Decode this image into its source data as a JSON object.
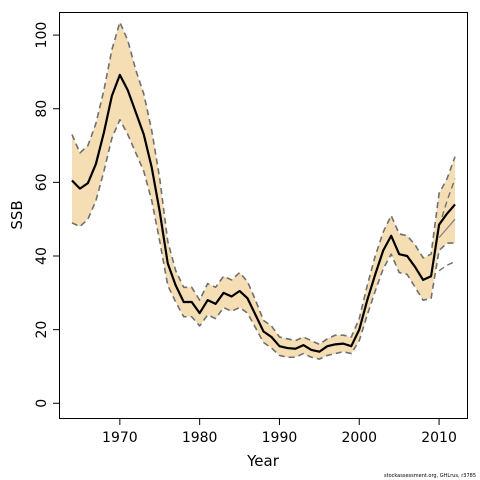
{
  "chart_data": {
    "type": "line",
    "xlabel": "Year",
    "ylabel": "SSB",
    "xlim": [
      1962.5,
      2013.5
    ],
    "ylim": [
      -4,
      106
    ],
    "xticks": [
      1970,
      1980,
      1990,
      2000,
      2010
    ],
    "yticks": [
      0,
      20,
      40,
      60,
      80,
      100
    ],
    "grid": false,
    "footnote": "stockassessment.org, GHLrus, r3785",
    "colors": {
      "band": "#f5deb3",
      "main": "#000000",
      "dashed": "#707070",
      "thin": "#808080"
    },
    "x": [
      1964,
      1965,
      1966,
      1967,
      1968,
      1969,
      1970,
      1971,
      1972,
      1973,
      1974,
      1975,
      1976,
      1977,
      1978,
      1979,
      1980,
      1981,
      1982,
      1983,
      1984,
      1985,
      1986,
      1987,
      1988,
      1989,
      1990,
      1991,
      1992,
      1993,
      1994,
      1995,
      1996,
      1997,
      1998,
      1999,
      2000,
      2001,
      2002,
      2003,
      2004,
      2005,
      2006,
      2007,
      2008,
      2009,
      2010,
      2011,
      2012
    ],
    "series": [
      {
        "role": "estimate",
        "values": [
          60.5,
          58.3,
          59.8,
          65.0,
          73.5,
          83.5,
          89.2,
          85.0,
          79.0,
          73.0,
          64.0,
          52.0,
          38.0,
          32.0,
          27.5,
          27.5,
          24.5,
          28.0,
          27.0,
          30.0,
          29.0,
          30.5,
          28.5,
          24.0,
          19.5,
          18.0,
          15.5,
          15.0,
          14.8,
          15.8,
          14.5,
          14.0,
          15.5,
          16.0,
          16.2,
          15.5,
          20.0,
          28.0,
          35.0,
          41.5,
          45.5,
          40.5,
          40.0,
          37.0,
          33.5,
          34.5,
          48.5,
          51.5,
          54.0
        ]
      },
      {
        "role": "upper-ci",
        "values": [
          73.0,
          68.0,
          70.0,
          76.0,
          85.0,
          96.0,
          103.5,
          98.5,
          90.5,
          84.0,
          74.0,
          61.0,
          44.0,
          36.0,
          31.5,
          31.5,
          28.0,
          32.5,
          31.5,
          34.5,
          33.5,
          35.5,
          33.0,
          28.0,
          22.5,
          21.0,
          18.0,
          17.5,
          17.0,
          18.0,
          17.0,
          16.0,
          17.5,
          18.5,
          18.5,
          18.0,
          23.0,
          32.0,
          40.0,
          46.5,
          51.0,
          46.0,
          45.5,
          43.0,
          39.5,
          40.5,
          57.0,
          61.0,
          67.0
        ]
      },
      {
        "role": "lower-ci",
        "values": [
          49.0,
          48.0,
          50.0,
          55.0,
          63.0,
          72.0,
          77.0,
          73.0,
          68.0,
          63.0,
          55.0,
          44.0,
          32.0,
          27.5,
          23.5,
          23.5,
          21.0,
          24.0,
          23.0,
          26.0,
          25.0,
          26.0,
          24.5,
          20.5,
          16.5,
          15.0,
          13.0,
          12.5,
          12.5,
          13.5,
          12.5,
          12.0,
          13.0,
          13.5,
          14.0,
          13.5,
          17.0,
          24.0,
          30.5,
          36.5,
          40.5,
          35.5,
          35.0,
          31.5,
          28.0,
          28.5,
          41.5,
          43.5,
          43.5
        ]
      },
      {
        "role": "secondary-estimate",
        "values": [
          null,
          null,
          null,
          null,
          null,
          null,
          null,
          null,
          null,
          null,
          null,
          null,
          null,
          null,
          null,
          null,
          null,
          null,
          null,
          null,
          null,
          null,
          null,
          null,
          null,
          null,
          null,
          null,
          null,
          null,
          null,
          null,
          null,
          null,
          null,
          null,
          null,
          null,
          null,
          null,
          null,
          null,
          null,
          null,
          null,
          null,
          45.0,
          47.5,
          50.0
        ]
      },
      {
        "role": "secondary-upper",
        "values": [
          null,
          null,
          null,
          null,
          null,
          null,
          null,
          null,
          null,
          null,
          null,
          null,
          null,
          null,
          null,
          null,
          null,
          null,
          null,
          null,
          null,
          null,
          null,
          null,
          null,
          null,
          null,
          null,
          null,
          null,
          null,
          null,
          null,
          null,
          null,
          null,
          null,
          null,
          null,
          null,
          null,
          null,
          null,
          null,
          null,
          null,
          48.0,
          55.0,
          61.0
        ]
      },
      {
        "role": "secondary-lower",
        "values": [
          null,
          null,
          null,
          null,
          null,
          null,
          null,
          null,
          null,
          null,
          null,
          null,
          null,
          null,
          null,
          null,
          null,
          null,
          null,
          null,
          null,
          null,
          null,
          null,
          null,
          null,
          null,
          null,
          null,
          null,
          null,
          null,
          null,
          null,
          null,
          null,
          null,
          null,
          null,
          null,
          null,
          null,
          null,
          null,
          null,
          null,
          36.0,
          37.5,
          38.5
        ]
      }
    ]
  }
}
